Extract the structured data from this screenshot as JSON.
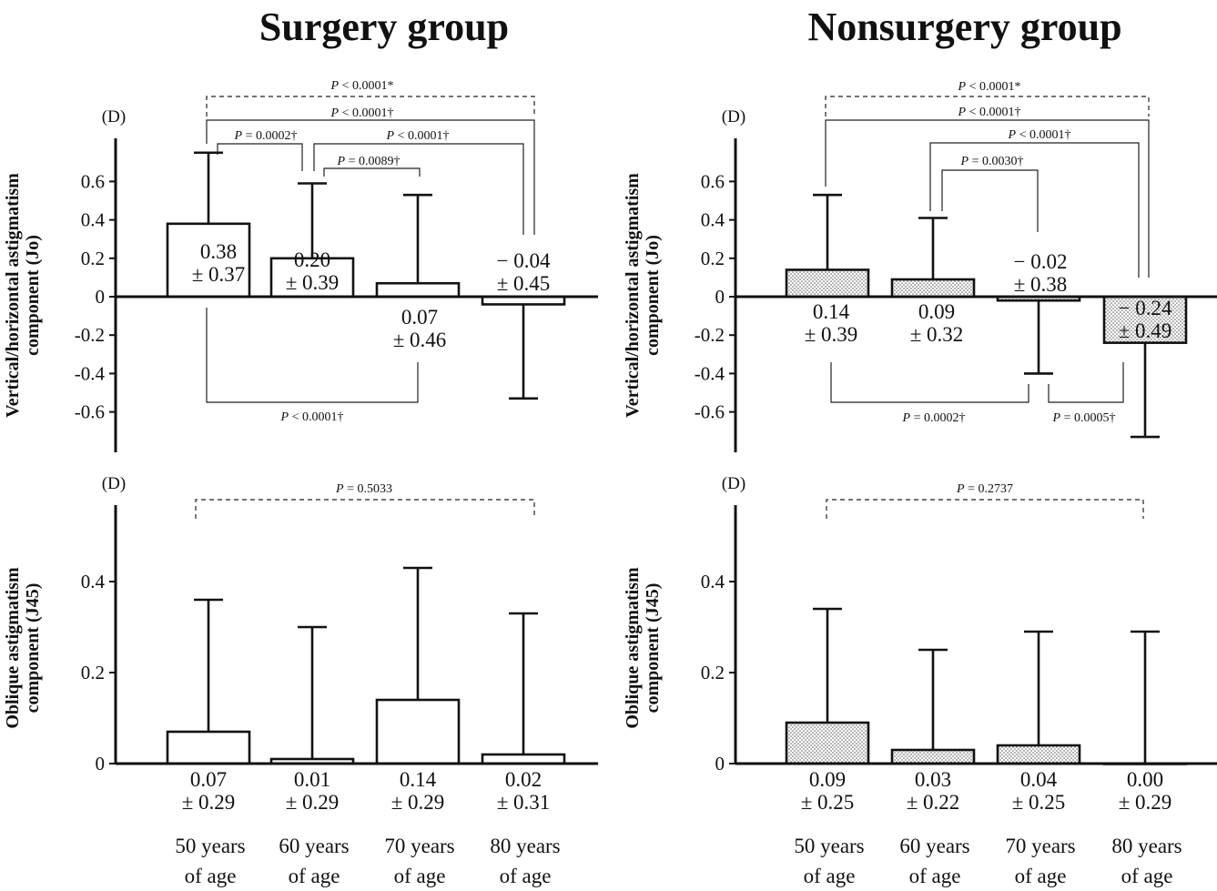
{
  "groups": [
    {
      "title": "Surgery group",
      "pattern": "open"
    },
    {
      "title": "Nonsurgery group",
      "pattern": "dotted"
    }
  ],
  "categories": [
    [
      "50 years",
      "of age"
    ],
    [
      "60 years",
      "of age"
    ],
    [
      "70 years",
      "of age"
    ],
    [
      "80 years",
      "of age"
    ]
  ],
  "unit_label": "(D)",
  "chart_data": [
    {
      "type": "bar",
      "group": "Surgery group",
      "ylabel": [
        "Vertical/horizontal astigmatism",
        "component (Jo)"
      ],
      "ylim": [
        -0.8,
        0.8
      ],
      "yticks": [
        "0.6",
        "0.4",
        "0.2",
        "0",
        "-0.2",
        "-0.4",
        "-0.6"
      ],
      "ytick_values": [
        0.6,
        0.4,
        0.2,
        0,
        -0.2,
        -0.4,
        -0.6
      ],
      "values": [
        0.38,
        0.2,
        0.07,
        -0.04
      ],
      "sd": [
        0.37,
        0.39,
        0.46,
        0.45
      ],
      "error_tips": [
        0.75,
        0.59,
        0.53,
        -0.53
      ],
      "value_labels": [
        [
          "0.38",
          "± 0.37"
        ],
        [
          "0.20",
          "± 0.39"
        ],
        [
          "0.07",
          "± 0.46"
        ],
        [
          "− 0.04",
          "± 0.45"
        ]
      ],
      "pvalues": [
        "P < 0.0001*",
        "P < 0.0001†",
        "P = 0.0002†",
        "P < 0.0001†",
        "P = 0.0089†",
        "P < 0.0001†"
      ]
    },
    {
      "type": "bar",
      "group": "Nonsurgery group",
      "ylabel": [
        "Vertical/horizontal astigmatism",
        "component (Jo)"
      ],
      "ylim": [
        -0.8,
        0.8
      ],
      "yticks": [
        "0.6",
        "0.4",
        "0.2",
        "0",
        "-0.2",
        "-0.4",
        "-0.6"
      ],
      "ytick_values": [
        0.6,
        0.4,
        0.2,
        0,
        -0.2,
        -0.4,
        -0.6
      ],
      "values": [
        0.14,
        0.09,
        -0.02,
        -0.24
      ],
      "sd": [
        0.39,
        0.32,
        0.38,
        0.49
      ],
      "error_tips": [
        0.53,
        0.41,
        -0.4,
        -0.73
      ],
      "value_labels": [
        [
          "0.14",
          "± 0.39"
        ],
        [
          "0.09",
          "± 0.32"
        ],
        [
          "− 0.02",
          "± 0.38"
        ],
        [
          "− 0.24",
          "± 0.49"
        ]
      ],
      "pvalues": [
        "P < 0.0001*",
        "P < 0.0001†",
        "P < 0.0001†",
        "P = 0.0030†",
        "P = 0.0002†",
        "P = 0.0005†"
      ]
    },
    {
      "type": "bar",
      "group": "Surgery group",
      "ylabel": [
        "Oblique astigmatism",
        "component (J45)"
      ],
      "ylim": [
        0,
        0.56
      ],
      "yticks": [
        "0.4",
        "0.2",
        "0"
      ],
      "ytick_values": [
        0.4,
        0.2,
        0
      ],
      "values": [
        0.07,
        0.01,
        0.14,
        0.02
      ],
      "sd": [
        0.29,
        0.29,
        0.29,
        0.31
      ],
      "error_tips": [
        0.36,
        0.3,
        0.43,
        0.33
      ],
      "value_labels": [
        [
          "0.07",
          "± 0.29"
        ],
        [
          "0.01",
          "± 0.29"
        ],
        [
          "0.14",
          "± 0.29"
        ],
        [
          "0.02",
          "± 0.31"
        ]
      ],
      "pvalues": [
        "P = 0.5033"
      ]
    },
    {
      "type": "bar",
      "group": "Nonsurgery group",
      "ylabel": [
        "Oblique astigmatism",
        "component (J45)"
      ],
      "ylim": [
        0,
        0.56
      ],
      "yticks": [
        "0.4",
        "0.2",
        "0"
      ],
      "ytick_values": [
        0.4,
        0.2,
        0
      ],
      "values": [
        0.09,
        0.03,
        0.04,
        0.0
      ],
      "sd": [
        0.25,
        0.22,
        0.25,
        0.29
      ],
      "error_tips": [
        0.34,
        0.25,
        0.29,
        0.29
      ],
      "value_labels": [
        [
          "0.09",
          "± 0.25"
        ],
        [
          "0.03",
          "± 0.22"
        ],
        [
          "0.04",
          "± 0.25"
        ],
        [
          "0.00",
          "± 0.29"
        ]
      ],
      "pvalues": [
        "P = 0.2737"
      ]
    }
  ]
}
